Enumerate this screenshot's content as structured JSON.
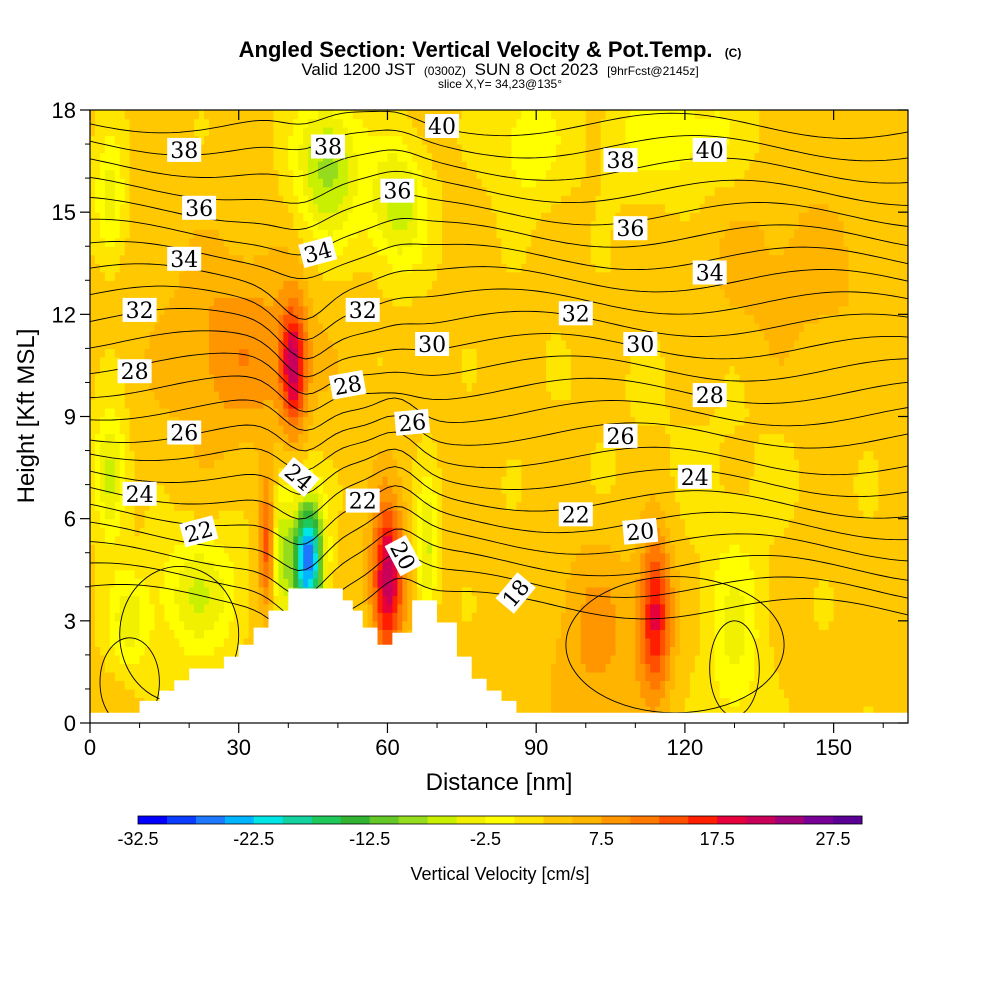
{
  "header": {
    "title": "Angled Section: Vertical Velocity & Pot.Temp.",
    "title_mark": "(C)",
    "valid_main": "Valid 1200 JST",
    "valid_utc": "(0300Z)",
    "valid_date": "SUN 8 Oct 2023",
    "valid_fcst": "[9hrFcst@2145z]",
    "slice": "slice X,Y= 34,23@135°"
  },
  "chart_data": {
    "type": "heatmap",
    "title": "Angled Section: Vertical Velocity & Pot.Temp.",
    "xlabel": "Distance [nm]",
    "ylabel": "Height [Kft MSL]",
    "xlim": [
      0,
      165
    ],
    "ylim": [
      0,
      18
    ],
    "x_ticks": [
      "0",
      "30",
      "60",
      "90",
      "120",
      "150"
    ],
    "y_ticks": [
      "0",
      "3",
      "6",
      "9",
      "12",
      "15",
      "18"
    ],
    "colorbar": {
      "title": "Vertical Velocity [cm/s]",
      "labels": [
        "-32.5",
        "-22.5",
        "-12.5",
        "-2.5",
        "7.5",
        "17.5",
        "27.5"
      ],
      "colors": [
        "#0000ff",
        "#0a3cff",
        "#1e78ff",
        "#00b4ff",
        "#00e6e6",
        "#14d2a0",
        "#1ec85a",
        "#32b432",
        "#64c828",
        "#96dc1e",
        "#c8f000",
        "#f0f000",
        "#ffff00",
        "#ffe600",
        "#ffc800",
        "#ffb400",
        "#ff9600",
        "#ff7800",
        "#ff5000",
        "#ff1e00",
        "#e6003c",
        "#c8005a",
        "#a00078",
        "#780096",
        "#5a0096"
      ]
    },
    "velocity_features": [
      {
        "x": 44,
        "y": 4.8,
        "value": -30,
        "sx": 2.2,
        "sy": 1.3
      },
      {
        "x": 38,
        "y": 5.2,
        "value": -12,
        "sx": 1.8,
        "sy": 1.5
      },
      {
        "x": 36,
        "y": 5.2,
        "value": 16,
        "sx": 1.3,
        "sy": 1.4
      },
      {
        "x": 41,
        "y": 10.5,
        "value": 17,
        "sx": 1.8,
        "sy": 1.2
      },
      {
        "x": 60,
        "y": 4.2,
        "value": 19,
        "sx": 2.2,
        "sy": 1.6
      },
      {
        "x": 68,
        "y": 5.0,
        "value": -9,
        "sx": 1.4,
        "sy": 1.5
      },
      {
        "x": 114,
        "y": 3.2,
        "value": 15,
        "sx": 2.3,
        "sy": 1.6
      },
      {
        "x": 102,
        "y": 2.5,
        "value": 5,
        "sx": 6,
        "sy": 2
      },
      {
        "x": 48,
        "y": 16.3,
        "value": -12,
        "sx": 4.5,
        "sy": 1.5
      },
      {
        "x": 62,
        "y": 15.2,
        "value": -10,
        "sx": 4,
        "sy": 1.3
      },
      {
        "x": 4,
        "y": 7.3,
        "value": -10,
        "sx": 2.2,
        "sy": 1.3
      },
      {
        "x": 4,
        "y": 15.3,
        "value": -7,
        "sx": 2.2,
        "sy": 1.3
      },
      {
        "x": 22,
        "y": 3.8,
        "value": -8,
        "sx": 6,
        "sy": 1.3
      },
      {
        "x": 8,
        "y": 3.0,
        "value": -7,
        "sx": 3,
        "sy": 1.0
      },
      {
        "x": 130,
        "y": 2.5,
        "value": -6,
        "sx": 4,
        "sy": 2.2
      },
      {
        "x": 118,
        "y": 17.3,
        "value": -5,
        "sx": 10,
        "sy": 1.3
      },
      {
        "x": 88,
        "y": 17.0,
        "value": -5,
        "sx": 5,
        "sy": 1.3
      },
      {
        "x": 30,
        "y": 11.0,
        "value": 6,
        "sx": 10,
        "sy": 2
      },
      {
        "x": 140,
        "y": 13,
        "value": 3,
        "sx": 14,
        "sy": 2
      },
      {
        "x": 125,
        "y": 9,
        "value": -1,
        "sx": 20,
        "sy": 3
      }
    ],
    "terrain": [
      [
        0,
        0.3
      ],
      [
        10,
        0.3
      ],
      [
        10,
        0.65
      ],
      [
        14,
        0.65
      ],
      [
        14,
        0.95
      ],
      [
        17,
        0.95
      ],
      [
        17,
        1.25
      ],
      [
        20,
        1.25
      ],
      [
        20,
        1.6
      ],
      [
        27,
        1.6
      ],
      [
        27,
        1.95
      ],
      [
        30,
        1.95
      ],
      [
        30,
        2.3
      ],
      [
        33,
        2.3
      ],
      [
        33,
        2.8
      ],
      [
        36,
        2.8
      ],
      [
        36,
        3.3
      ],
      [
        40,
        3.3
      ],
      [
        40,
        3.95
      ],
      [
        51,
        3.95
      ],
      [
        51,
        3.6
      ],
      [
        53,
        3.6
      ],
      [
        53,
        3.3
      ],
      [
        55,
        3.3
      ],
      [
        55,
        2.8
      ],
      [
        58,
        2.8
      ],
      [
        58,
        2.3
      ],
      [
        61,
        2.3
      ],
      [
        61,
        2.65
      ],
      [
        65,
        2.65
      ],
      [
        65,
        3.6
      ],
      [
        70,
        3.6
      ],
      [
        70,
        2.95
      ],
      [
        74,
        2.95
      ],
      [
        74,
        1.95
      ],
      [
        77,
        1.95
      ],
      [
        77,
        1.3
      ],
      [
        80,
        1.3
      ],
      [
        80,
        0.95
      ],
      [
        83,
        0.95
      ],
      [
        83,
        0.65
      ],
      [
        86,
        0.65
      ],
      [
        86,
        0.3
      ],
      [
        165,
        0.3
      ]
    ],
    "isentropes_C": [
      18,
      19,
      20,
      21,
      22,
      23,
      24,
      25,
      26,
      27,
      28,
      29,
      30,
      31,
      32,
      33,
      34,
      35,
      36,
      37,
      38,
      39,
      40
    ],
    "contour_labels": [
      {
        "text": "38",
        "x": 19,
        "y": 16.8,
        "angle": 0
      },
      {
        "text": "38",
        "x": 48,
        "y": 16.9,
        "angle": 0
      },
      {
        "text": "40",
        "x": 71,
        "y": 17.5,
        "angle": 0
      },
      {
        "text": "38",
        "x": 107,
        "y": 16.5,
        "angle": 0
      },
      {
        "text": "40",
        "x": 125,
        "y": 16.8,
        "angle": 0
      },
      {
        "text": "36",
        "x": 22,
        "y": 15.1,
        "angle": 0
      },
      {
        "text": "36",
        "x": 62,
        "y": 15.6,
        "angle": 0
      },
      {
        "text": "36",
        "x": 109,
        "y": 14.5,
        "angle": 0
      },
      {
        "text": "34",
        "x": 19,
        "y": 13.6,
        "angle": 0
      },
      {
        "text": "34",
        "x": 46,
        "y": 13.8,
        "angle": -15
      },
      {
        "text": "34",
        "x": 125,
        "y": 13.2,
        "angle": 0
      },
      {
        "text": "32",
        "x": 10,
        "y": 12.1,
        "angle": 0
      },
      {
        "text": "32",
        "x": 55,
        "y": 12.1,
        "angle": 0
      },
      {
        "text": "32",
        "x": 98,
        "y": 12.0,
        "angle": 0
      },
      {
        "text": "30",
        "x": 69,
        "y": 11.1,
        "angle": 0
      },
      {
        "text": "30",
        "x": 111,
        "y": 11.1,
        "angle": 0
      },
      {
        "text": "28",
        "x": 9,
        "y": 10.3,
        "angle": 0
      },
      {
        "text": "28",
        "x": 52,
        "y": 9.9,
        "angle": -10
      },
      {
        "text": "28",
        "x": 125,
        "y": 9.6,
        "angle": 0
      },
      {
        "text": "26",
        "x": 19,
        "y": 8.5,
        "angle": 0
      },
      {
        "text": "26",
        "x": 65,
        "y": 8.8,
        "angle": -5
      },
      {
        "text": "26",
        "x": 107,
        "y": 8.4,
        "angle": 0
      },
      {
        "text": "24",
        "x": 42,
        "y": 7.2,
        "angle": 40
      },
      {
        "text": "24",
        "x": 10,
        "y": 6.7,
        "angle": 0
      },
      {
        "text": "24",
        "x": 122,
        "y": 7.2,
        "angle": 0
      },
      {
        "text": "22",
        "x": 22,
        "y": 5.6,
        "angle": -15
      },
      {
        "text": "22",
        "x": 55,
        "y": 6.5,
        "angle": 0
      },
      {
        "text": "22",
        "x": 98,
        "y": 6.1,
        "angle": 0
      },
      {
        "text": "20",
        "x": 111,
        "y": 5.6,
        "angle": -5
      },
      {
        "text": "20",
        "x": 63,
        "y": 4.9,
        "angle": 62
      },
      {
        "text": "18",
        "x": 86,
        "y": 3.8,
        "angle": -50
      }
    ]
  }
}
